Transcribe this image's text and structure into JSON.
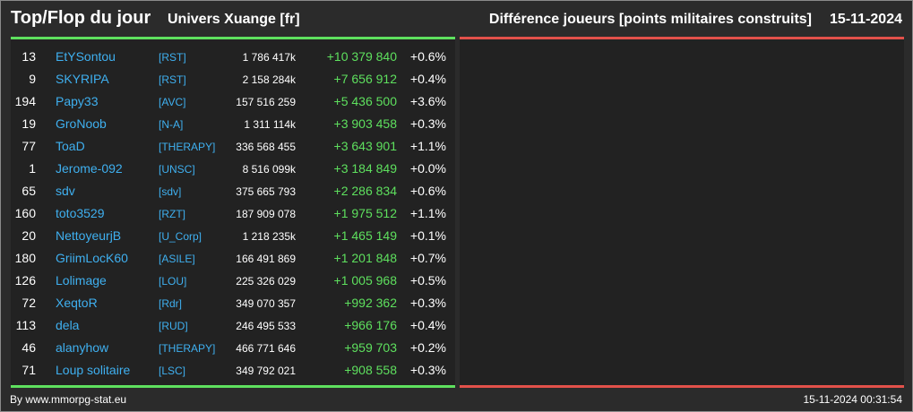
{
  "header": {
    "title": "Top/Flop du jour",
    "universe": "Univers Xuange [fr]",
    "metric": "Différence joueurs [points militaires construits]",
    "date": "15-11-2024"
  },
  "colors": {
    "top_accent": "#5ee05e",
    "flop_accent": "#e2514a",
    "name_color": "#3fb0f0"
  },
  "top": [
    {
      "rank": "13",
      "name": "EtYSontou",
      "alliance": "[RST]",
      "points": "1 786 417k",
      "diff": "+10 379 840",
      "pct": "+0.6%"
    },
    {
      "rank": "9",
      "name": "SKYRIPA",
      "alliance": "[RST]",
      "points": "2 158 284k",
      "diff": "+7 656 912",
      "pct": "+0.4%"
    },
    {
      "rank": "194",
      "name": "Papy33",
      "alliance": "[AVC]",
      "points": "157 516 259",
      "diff": "+5 436 500",
      "pct": "+3.6%"
    },
    {
      "rank": "19",
      "name": "GroNoob",
      "alliance": "[N-A]",
      "points": "1 311 114k",
      "diff": "+3 903 458",
      "pct": "+0.3%"
    },
    {
      "rank": "77",
      "name": "ToaD",
      "alliance": "[THERAPY]",
      "points": "336 568 455",
      "diff": "+3 643 901",
      "pct": "+1.1%"
    },
    {
      "rank": "1",
      "name": "Jerome-092",
      "alliance": "[UNSC]",
      "points": "8 516 099k",
      "diff": "+3 184 849",
      "pct": "+0.0%"
    },
    {
      "rank": "65",
      "name": "sdv",
      "alliance": "[sdv]",
      "points": "375 665 793",
      "diff": "+2 286 834",
      "pct": "+0.6%"
    },
    {
      "rank": "160",
      "name": "toto3529",
      "alliance": "[RZT]",
      "points": "187 909 078",
      "diff": "+1 975 512",
      "pct": "+1.1%"
    },
    {
      "rank": "20",
      "name": "NettoyeurjB",
      "alliance": "[U_Corp]",
      "points": "1 218 235k",
      "diff": "+1 465 149",
      "pct": "+0.1%"
    },
    {
      "rank": "180",
      "name": "GriimLocK60",
      "alliance": "[ASILE]",
      "points": "166 491 869",
      "diff": "+1 201 848",
      "pct": "+0.7%"
    },
    {
      "rank": "126",
      "name": "Lolimage",
      "alliance": "[LOU]",
      "points": "225 326 029",
      "diff": "+1 005 968",
      "pct": "+0.5%"
    },
    {
      "rank": "72",
      "name": "XeqtoR",
      "alliance": "[Rdr]",
      "points": "349 070 357",
      "diff": "+992 362",
      "pct": "+0.3%"
    },
    {
      "rank": "113",
      "name": "dela",
      "alliance": "[RUD]",
      "points": "246 495 533",
      "diff": "+966 176",
      "pct": "+0.4%"
    },
    {
      "rank": "46",
      "name": "alanyhow",
      "alliance": "[THERAPY]",
      "points": "466 771 646",
      "diff": "+959 703",
      "pct": "+0.2%"
    },
    {
      "rank": "71",
      "name": "Loup solitaire",
      "alliance": "[LSC]",
      "points": "349 792 021",
      "diff": "+908 558",
      "pct": "+0.3%"
    }
  ],
  "flop": [],
  "footer": {
    "credit": "By www.mmorpg-stat.eu",
    "timestamp": "15-11-2024 00:31:54"
  }
}
